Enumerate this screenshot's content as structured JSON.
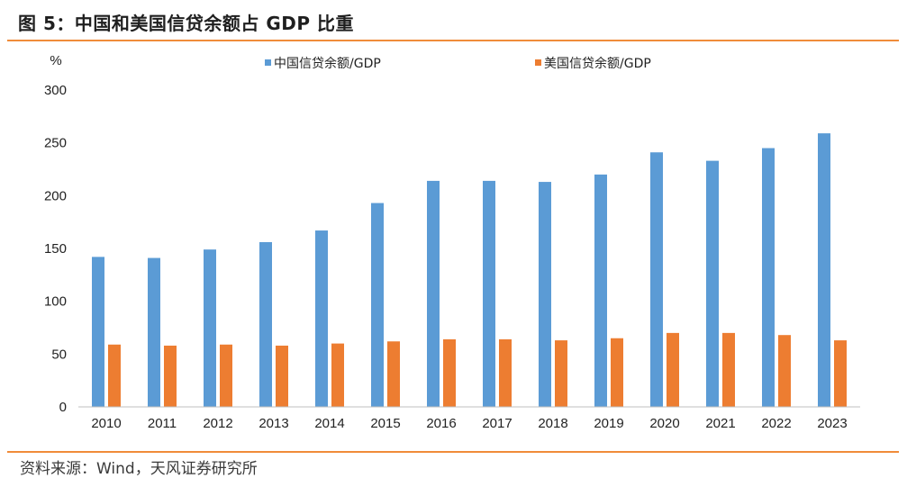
{
  "header": {
    "title": "图 5：中国和美国信贷余额占 GDP 比重"
  },
  "footer": {
    "source": "资料来源：Wind，天风证券研究所"
  },
  "chart_data": {
    "type": "bar",
    "ylabel": "%",
    "ylim": [
      0,
      300
    ],
    "yticks": [
      0,
      50,
      100,
      150,
      200,
      250,
      300
    ],
    "categories": [
      "2010",
      "2011",
      "2012",
      "2013",
      "2014",
      "2015",
      "2016",
      "2017",
      "2018",
      "2019",
      "2020",
      "2021",
      "2022",
      "2023"
    ],
    "series": [
      {
        "name": "中国信贷余额/GDP",
        "color": "#5b9bd5",
        "values": [
          142,
          141,
          149,
          156,
          167,
          193,
          214,
          214,
          213,
          220,
          241,
          233,
          245,
          259
        ]
      },
      {
        "name": "美国信贷余额/GDP",
        "color": "#ed7d31",
        "values": [
          59,
          58,
          59,
          58,
          60,
          62,
          64,
          64,
          63,
          65,
          70,
          70,
          68,
          63
        ]
      }
    ],
    "grid": false,
    "legend": "top"
  }
}
